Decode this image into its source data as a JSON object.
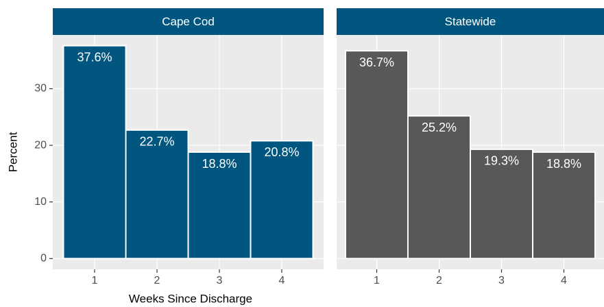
{
  "chart_data": [
    {
      "type": "bar",
      "title": "Cape Cod",
      "categories": [
        "1",
        "2",
        "3",
        "4"
      ],
      "values": [
        37.6,
        22.7,
        18.8,
        20.8
      ],
      "value_labels": [
        "37.6%",
        "22.7%",
        "18.8%",
        "20.8%"
      ],
      "color": "#00567f",
      "ylim": [
        -1.9,
        39.5
      ],
      "yticks": [
        0,
        10,
        20,
        30
      ],
      "grid": true
    },
    {
      "type": "bar",
      "title": "Statewide",
      "categories": [
        "1",
        "2",
        "3",
        "4"
      ],
      "values": [
        36.7,
        25.2,
        19.3,
        18.8
      ],
      "value_labels": [
        "36.7%",
        "25.2%",
        "19.3%",
        "18.8%"
      ],
      "color": "#58585b",
      "ylim": [
        -1.9,
        39.5
      ],
      "yticks": [
        0,
        10,
        20,
        30
      ],
      "grid": true
    }
  ],
  "xlabel": "Weeks Since Discharge",
  "ylabel": "Percent"
}
